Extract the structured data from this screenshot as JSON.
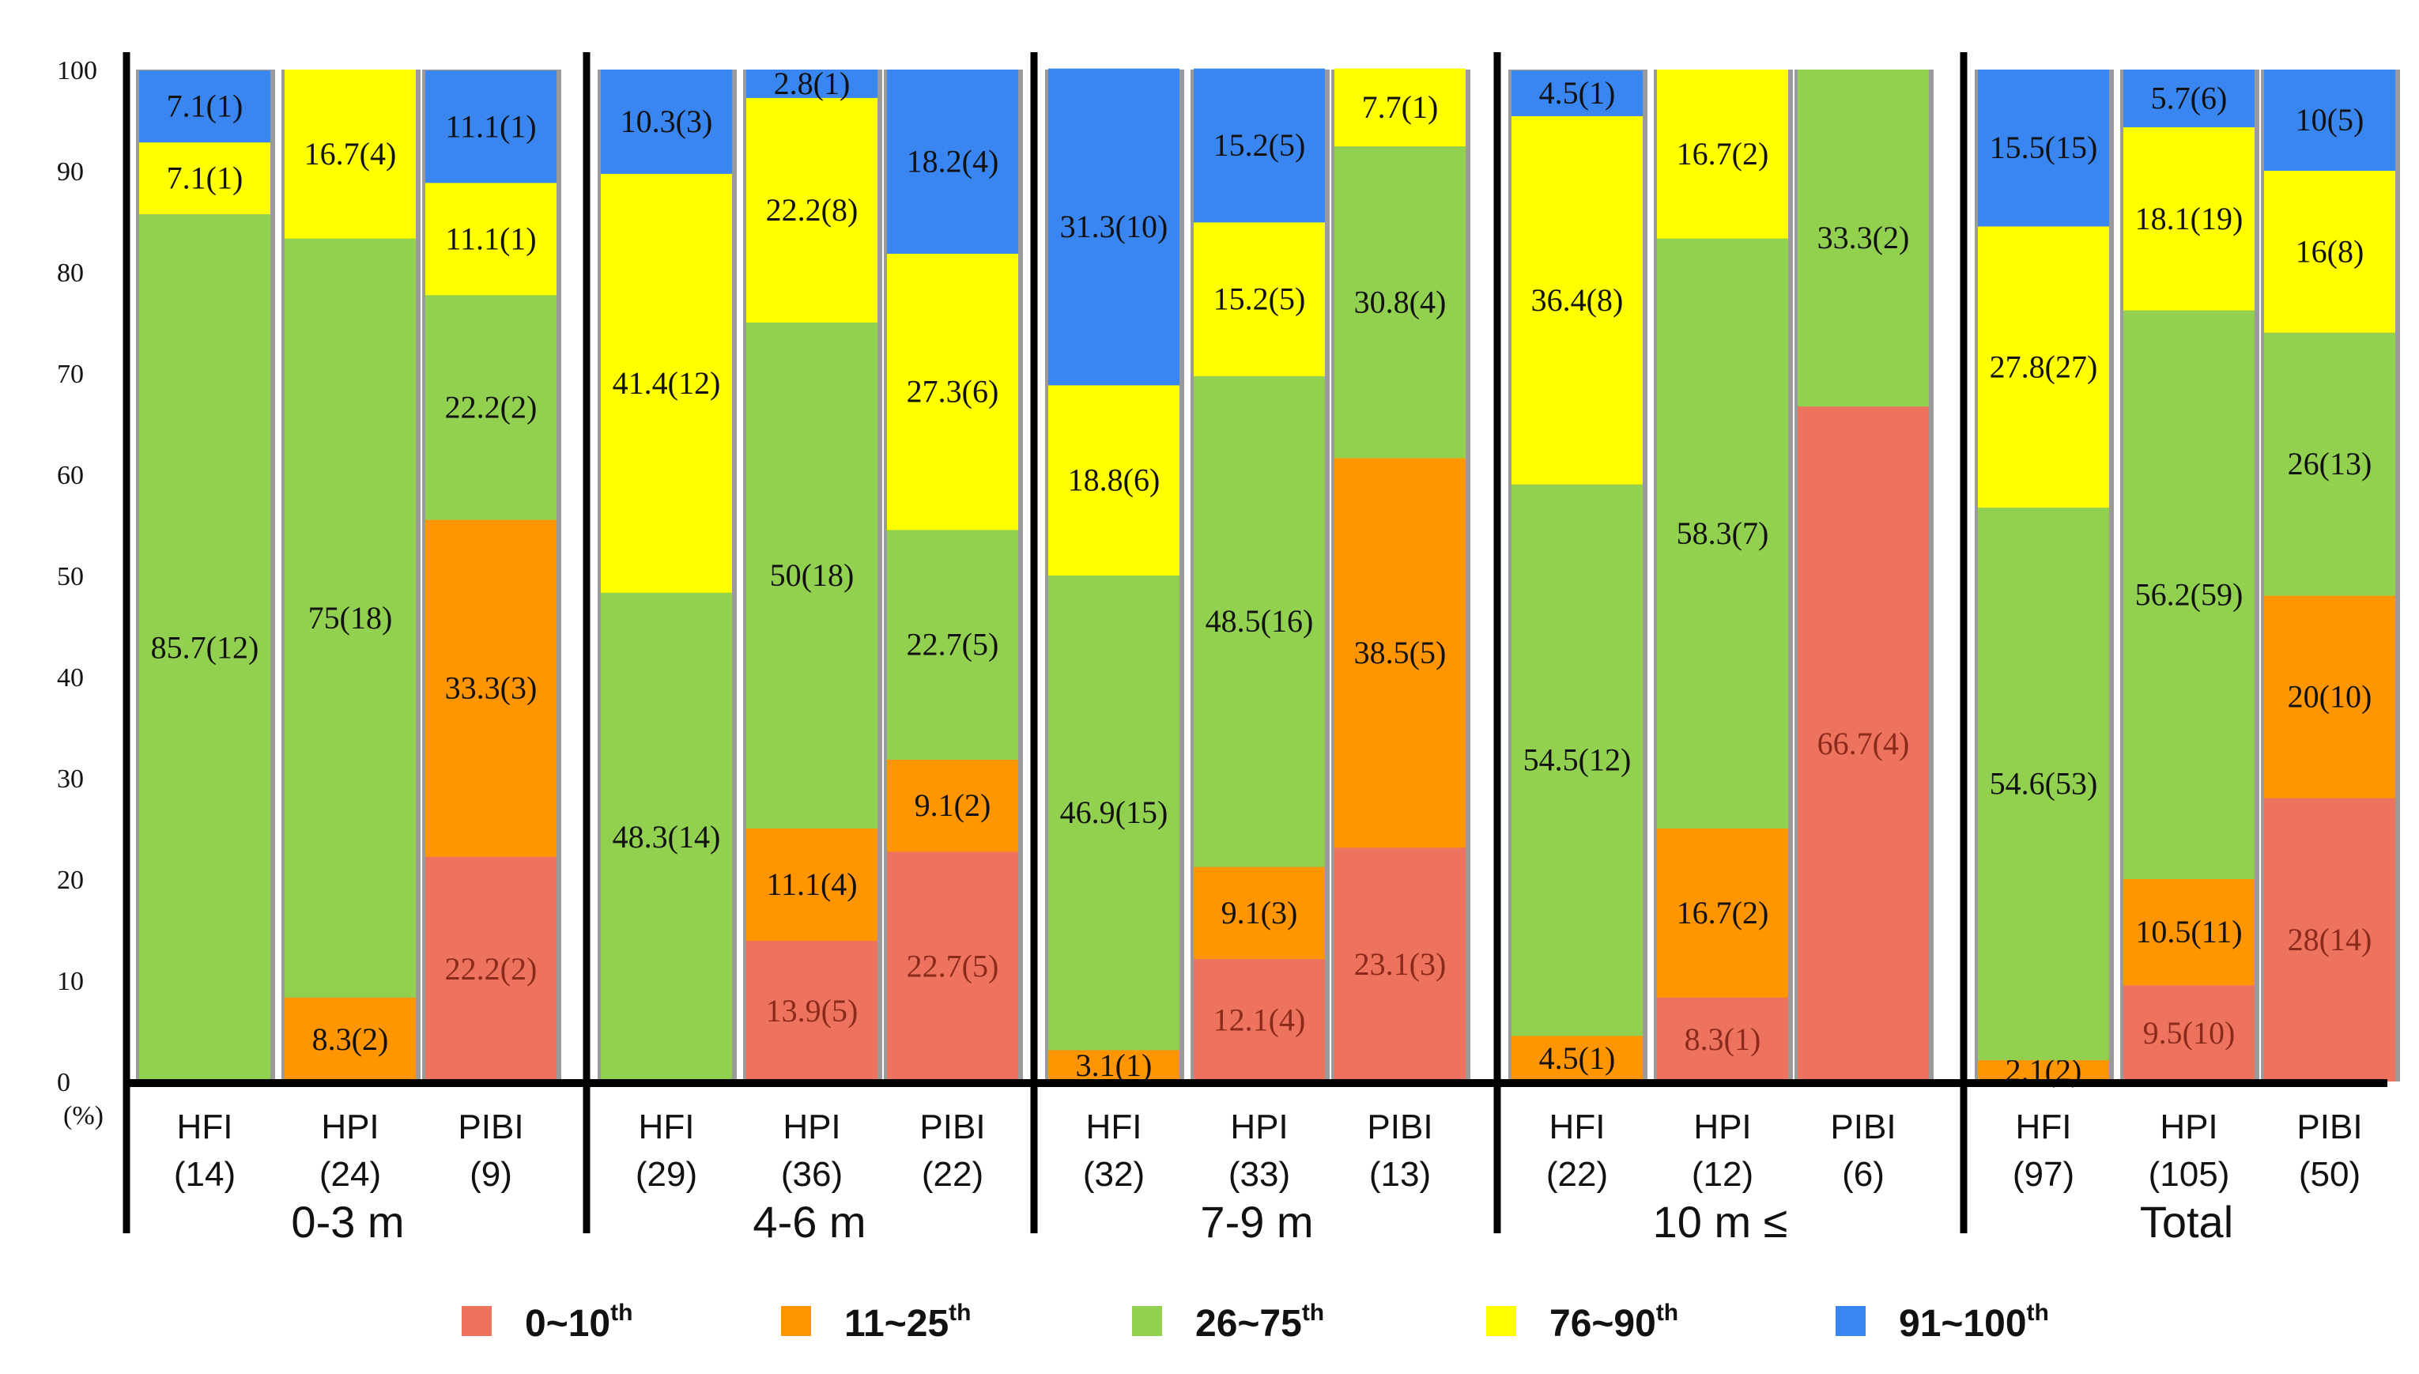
{
  "chart_data": {
    "type": "bar",
    "stacked": true,
    "ylim": [
      0,
      100
    ],
    "yticks": [
      "0",
      "10",
      "20",
      "30",
      "40",
      "50",
      "60",
      "70",
      "80",
      "90",
      "100"
    ],
    "ylabel": "(%)",
    "legend_position": "bottom",
    "legend": [
      {
        "key": "p0",
        "label": "0~10",
        "sup": "th",
        "color": "#ee735f"
      },
      {
        "key": "p1",
        "label": "11~25",
        "sup": "th",
        "color": "#ff9500"
      },
      {
        "key": "p2",
        "label": "26~75",
        "sup": "th",
        "color": "#92d050"
      },
      {
        "key": "p3",
        "label": "76~90",
        "sup": "th",
        "color": "#ffff00"
      },
      {
        "key": "p4",
        "label": "91~100",
        "sup": "th",
        "color": "#3a86f0"
      }
    ],
    "groups": [
      {
        "label": "0-3 m",
        "bars": [
          {
            "name": "HFI",
            "n": "(14)",
            "values": [
              0,
              0,
              85.7,
              7.1,
              7.1
            ],
            "labels": [
              "",
              "",
              "85.7(12)",
              "7.1(1)",
              "7.1(1)"
            ]
          },
          {
            "name": "HPI",
            "n": "(24)",
            "values": [
              0,
              8.3,
              75,
              16.7,
              0
            ],
            "labels": [
              "",
              "8.3(2)",
              "75(18)",
              "16.7(4)",
              ""
            ]
          },
          {
            "name": "PIBI",
            "n": "(9)",
            "values": [
              22.2,
              33.3,
              22.2,
              11.1,
              11.1
            ],
            "labels": [
              "22.2(2)",
              "33.3(3)",
              "22.2(2)",
              "11.1(1)",
              "11.1(1)"
            ]
          }
        ]
      },
      {
        "label": "4-6 m",
        "bars": [
          {
            "name": "HFI",
            "n": "(29)",
            "values": [
              0,
              0,
              48.3,
              41.4,
              10.3
            ],
            "labels": [
              "",
              "",
              "48.3(14)",
              "41.4(12)",
              "10.3(3)"
            ]
          },
          {
            "name": "HPI",
            "n": "(36)",
            "values": [
              13.9,
              11.1,
              50,
              22.2,
              2.8
            ],
            "labels": [
              "13.9(5)",
              "11.1(4)",
              "50(18)",
              "22.2(8)",
              "2.8(1)"
            ]
          },
          {
            "name": "PIBI",
            "n": "(22)",
            "values": [
              22.7,
              9.1,
              22.7,
              27.3,
              18.2
            ],
            "labels": [
              "22.7(5)",
              "9.1(2)",
              "22.7(5)",
              "27.3(6)",
              "18.2(4)"
            ]
          }
        ]
      },
      {
        "label": "7-9 m",
        "bars": [
          {
            "name": "HFI",
            "n": "(32)",
            "values": [
              0,
              3.1,
              46.9,
              18.8,
              31.3
            ],
            "labels": [
              "",
              "3.1(1)",
              "46.9(15)",
              "18.8(6)",
              "31.3(10)"
            ]
          },
          {
            "name": "HPI",
            "n": "(33)",
            "values": [
              12.1,
              9.1,
              48.5,
              15.2,
              15.2
            ],
            "labels": [
              "12.1(4)",
              "9.1(3)",
              "48.5(16)",
              "15.2(5)",
              "15.2(5)"
            ]
          },
          {
            "name": "PIBI",
            "n": "(13)",
            "values": [
              23.1,
              38.5,
              30.8,
              7.7,
              0
            ],
            "labels": [
              "23.1(3)",
              "38.5(5)",
              "30.8(4)",
              "7.7(1)",
              ""
            ]
          }
        ]
      },
      {
        "label": "10 m ≤",
        "bars": [
          {
            "name": "HFI",
            "n": "(22)",
            "values": [
              0,
              4.5,
              54.5,
              36.4,
              4.5
            ],
            "labels": [
              "",
              "4.5(1)",
              "54.5(12)",
              "36.4(8)",
              "4.5(1)"
            ]
          },
          {
            "name": "HPI",
            "n": "(12)",
            "values": [
              8.3,
              16.7,
              58.3,
              16.7,
              0
            ],
            "labels": [
              "8.3(1)",
              "16.7(2)",
              "58.3(7)",
              "16.7(2)",
              ""
            ]
          },
          {
            "name": "PIBI",
            "n": "(6)",
            "values": [
              66.7,
              0,
              33.3,
              0,
              0
            ],
            "labels": [
              "66.7(4)",
              "",
              "33.3(2)",
              "",
              ""
            ]
          }
        ]
      },
      {
        "label": "Total",
        "bars": [
          {
            "name": "HFI",
            "n": "(97)",
            "values": [
              0,
              2.1,
              54.6,
              27.8,
              15.5
            ],
            "labels": [
              "",
              "2.1(2)",
              "54.6(53)",
              "27.8(27)",
              "15.5(15)"
            ]
          },
          {
            "name": "HPI",
            "n": "(105)",
            "values": [
              9.5,
              10.5,
              56.2,
              18.1,
              5.7
            ],
            "labels": [
              "9.5(10)",
              "10.5(11)",
              "56.2(59)",
              "18.1(19)",
              "5.7(6)"
            ]
          },
          {
            "name": "PIBI",
            "n": "(50)",
            "values": [
              28,
              20,
              26,
              16,
              10
            ],
            "labels": [
              "28(14)",
              "20(10)",
              "26(13)",
              "16(8)",
              "10(5)"
            ]
          }
        ]
      }
    ]
  }
}
